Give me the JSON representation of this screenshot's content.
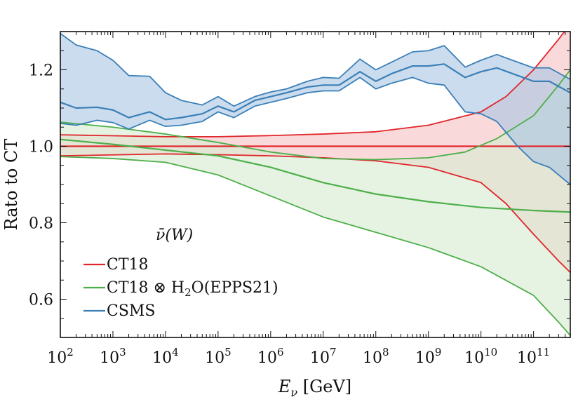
{
  "chart_data": {
    "type": "line",
    "ylabel": "Rato to CT",
    "xlabel_main": "E",
    "xlabel_sub": "ν",
    "xlabel_unit": " [GeV]",
    "x_scale": "log",
    "xlim": [
      100,
      500000000000
    ],
    "ylim": [
      0.5,
      1.3
    ],
    "x_ticks": [
      {
        "value": 100,
        "base": "10",
        "exp": "2"
      },
      {
        "value": 1000,
        "base": "10",
        "exp": "3"
      },
      {
        "value": 10000,
        "base": "10",
        "exp": "4"
      },
      {
        "value": 100000,
        "base": "10",
        "exp": "5"
      },
      {
        "value": 1000000,
        "base": "10",
        "exp": "6"
      },
      {
        "value": 10000000,
        "base": "10",
        "exp": "7"
      },
      {
        "value": 100000000,
        "base": "10",
        "exp": "8"
      },
      {
        "value": 1000000000,
        "base": "10",
        "exp": "9"
      },
      {
        "value": 10000000000,
        "base": "10",
        "exp": "10"
      },
      {
        "value": 100000000000,
        "base": "10",
        "exp": "11"
      }
    ],
    "y_ticks": [
      {
        "value": 0.6,
        "label": "0.6"
      },
      {
        "value": 0.8,
        "label": "0.8"
      },
      {
        "value": 1.0,
        "label": "1.0"
      },
      {
        "value": 1.2,
        "label": "1.2"
      }
    ],
    "legend": {
      "position": "bottom-left",
      "title_main": "ν̄",
      "title_rest": "(W)",
      "entries": [
        {
          "label": "CT18",
          "color": "#e0262b"
        },
        {
          "label_parts": [
            "CT18 ⊗ H",
            "2",
            "O(EPPS21)"
          ],
          "color": "#4daf4a"
        },
        {
          "label": "CSMS",
          "color": "#3b7fb8"
        }
      ]
    },
    "series": [
      {
        "name": "CT18",
        "color": "#e0262b",
        "fill": "#f7c2c3",
        "central": [
          [
            100,
            1.0
          ],
          [
            500000000000,
            1.0
          ]
        ],
        "upper": [
          [
            100,
            1.03
          ],
          [
            10000,
            1.025
          ],
          [
            100000,
            1.025
          ],
          [
            1000000,
            1.028
          ],
          [
            10000000,
            1.032
          ],
          [
            100000000,
            1.038
          ],
          [
            1000000000,
            1.055
          ],
          [
            10000000000,
            1.09
          ],
          [
            30000000000,
            1.13
          ],
          [
            100000000000,
            1.2
          ],
          [
            300000000000,
            1.28
          ],
          [
            500000000000,
            1.32
          ]
        ],
        "lower": [
          [
            100,
            0.975
          ],
          [
            10000,
            0.98
          ],
          [
            100000,
            0.978
          ],
          [
            1000000,
            0.975
          ],
          [
            10000000,
            0.97
          ],
          [
            100000000,
            0.962
          ],
          [
            1000000000,
            0.945
          ],
          [
            10000000000,
            0.905
          ],
          [
            30000000000,
            0.85
          ],
          [
            100000000000,
            0.77
          ],
          [
            300000000000,
            0.7
          ],
          [
            500000000000,
            0.67
          ]
        ]
      },
      {
        "name": "CT18 ⊗ H2O(EPPS21)",
        "color": "#4daf4a",
        "fill": "#d6ecd2",
        "central": [
          [
            100,
            1.018
          ],
          [
            1000,
            1.005
          ],
          [
            10000,
            0.99
          ],
          [
            100000,
            0.975
          ],
          [
            1000000,
            0.945
          ],
          [
            10000000,
            0.905
          ],
          [
            100000000,
            0.875
          ],
          [
            1000000000,
            0.855
          ],
          [
            10000000000,
            0.84
          ],
          [
            100000000000,
            0.832
          ],
          [
            500000000000,
            0.828
          ]
        ],
        "upper": [
          [
            100,
            1.063
          ],
          [
            1000,
            1.05
          ],
          [
            10000,
            1.032
          ],
          [
            100000,
            1.01
          ],
          [
            1000000,
            0.985
          ],
          [
            10000000,
            0.968
          ],
          [
            100000000,
            0.965
          ],
          [
            1000000000,
            0.97
          ],
          [
            5000000000,
            0.985
          ],
          [
            20000000000,
            1.02
          ],
          [
            100000000000,
            1.08
          ],
          [
            300000000000,
            1.16
          ],
          [
            500000000000,
            1.2
          ]
        ],
        "lower": [
          [
            100,
            0.973
          ],
          [
            1000,
            0.968
          ],
          [
            10000,
            0.958
          ],
          [
            100000,
            0.925
          ],
          [
            1000000,
            0.87
          ],
          [
            10000000,
            0.815
          ],
          [
            100000000,
            0.775
          ],
          [
            1000000000,
            0.735
          ],
          [
            10000000000,
            0.685
          ],
          [
            100000000000,
            0.61
          ],
          [
            300000000000,
            0.54
          ],
          [
            500000000000,
            0.505
          ]
        ]
      },
      {
        "name": "CSMS",
        "color": "#3b7fb8",
        "fill": "#a9c6e2",
        "central": [
          [
            100,
            1.115
          ],
          [
            200,
            1.1
          ],
          [
            500,
            1.102
          ],
          [
            1000,
            1.095
          ],
          [
            2000,
            1.075
          ],
          [
            5000,
            1.09
          ],
          [
            10000,
            1.07
          ],
          [
            20000,
            1.075
          ],
          [
            50000,
            1.085
          ],
          [
            100000,
            1.105
          ],
          [
            200000,
            1.09
          ],
          [
            500000,
            1.12
          ],
          [
            1000000,
            1.13
          ],
          [
            2000000,
            1.14
          ],
          [
            5000000,
            1.155
          ],
          [
            10000000,
            1.16
          ],
          [
            20000000,
            1.16
          ],
          [
            50000000,
            1.195
          ],
          [
            100000000,
            1.17
          ],
          [
            200000000,
            1.19
          ],
          [
            500000000,
            1.21
          ],
          [
            1000000000,
            1.21
          ],
          [
            2000000000,
            1.215
          ],
          [
            5000000000,
            1.18
          ],
          [
            10000000000,
            1.195
          ],
          [
            20000000000,
            1.205
          ],
          [
            50000000000,
            1.185
          ],
          [
            100000000000,
            1.17
          ],
          [
            200000000000,
            1.17
          ],
          [
            500000000000,
            1.14
          ]
        ],
        "upper": [
          [
            100,
            1.295
          ],
          [
            200,
            1.265
          ],
          [
            500,
            1.25
          ],
          [
            1000,
            1.225
          ],
          [
            2000,
            1.185
          ],
          [
            5000,
            1.183
          ],
          [
            10000,
            1.14
          ],
          [
            20000,
            1.12
          ],
          [
            50000,
            1.108
          ],
          [
            100000,
            1.13
          ],
          [
            200000,
            1.105
          ],
          [
            500000,
            1.13
          ],
          [
            1000000,
            1.142
          ],
          [
            2000000,
            1.15
          ],
          [
            5000000,
            1.17
          ],
          [
            10000000,
            1.18
          ],
          [
            20000000,
            1.178
          ],
          [
            50000000,
            1.228
          ],
          [
            100000000,
            1.2
          ],
          [
            200000000,
            1.22
          ],
          [
            500000000,
            1.247
          ],
          [
            1000000000,
            1.25
          ],
          [
            2000000000,
            1.263
          ],
          [
            5000000000,
            1.207
          ],
          [
            10000000000,
            1.225
          ],
          [
            20000000000,
            1.24
          ],
          [
            50000000000,
            1.22
          ],
          [
            100000000000,
            1.205
          ],
          [
            200000000000,
            1.205
          ],
          [
            500000000000,
            1.175
          ]
        ],
        "lower": [
          [
            100,
            1.06
          ],
          [
            200,
            1.055
          ],
          [
            500,
            1.068
          ],
          [
            1000,
            1.062
          ],
          [
            2000,
            1.045
          ],
          [
            5000,
            1.068
          ],
          [
            10000,
            1.052
          ],
          [
            20000,
            1.055
          ],
          [
            50000,
            1.065
          ],
          [
            100000,
            1.09
          ],
          [
            200000,
            1.075
          ],
          [
            500000,
            1.105
          ],
          [
            1000000,
            1.115
          ],
          [
            2000000,
            1.125
          ],
          [
            5000000,
            1.14
          ],
          [
            10000000,
            1.145
          ],
          [
            20000000,
            1.145
          ],
          [
            50000000,
            1.18
          ],
          [
            100000000,
            1.15
          ],
          [
            200000000,
            1.165
          ],
          [
            500000000,
            1.18
          ],
          [
            1000000000,
            1.165
          ],
          [
            2000000000,
            1.16
          ],
          [
            5000000000,
            1.09
          ],
          [
            10000000000,
            1.085
          ],
          [
            20000000000,
            1.065
          ],
          [
            50000000000,
            1.0
          ],
          [
            100000000000,
            0.96
          ],
          [
            200000000000,
            0.945
          ],
          [
            500000000000,
            0.9
          ]
        ]
      }
    ]
  }
}
